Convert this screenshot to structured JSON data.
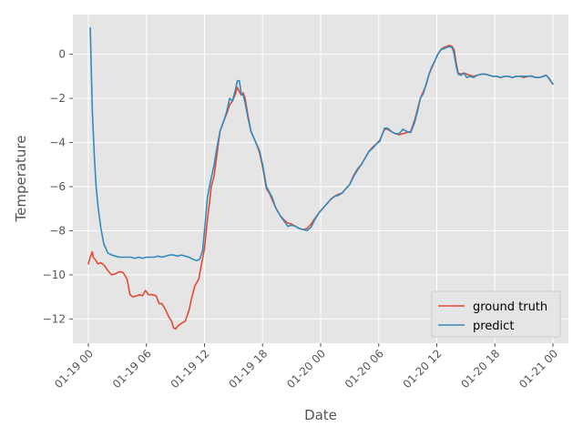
{
  "chart_data": {
    "type": "line",
    "style": "ggplot",
    "xlabel": "Date",
    "ylabel": "Temperature",
    "x_unit": "hours from 01-19 00",
    "xlim": [
      -1.6,
      49.6
    ],
    "ylim": [
      -13.1,
      1.8
    ],
    "x_ticks": [
      {
        "value": 0,
        "label": "01-19 00"
      },
      {
        "value": 6,
        "label": "01-19 06"
      },
      {
        "value": 12,
        "label": "01-19 12"
      },
      {
        "value": 18,
        "label": "01-19 18"
      },
      {
        "value": 24,
        "label": "01-20 00"
      },
      {
        "value": 30,
        "label": "01-20 06"
      },
      {
        "value": 36,
        "label": "01-20 12"
      },
      {
        "value": 42,
        "label": "01-20 18"
      },
      {
        "value": 48,
        "label": "01-21 00"
      }
    ],
    "y_ticks": [
      0,
      -2,
      -4,
      -6,
      -8,
      -10,
      -12
    ],
    "grid": true,
    "legend_position": "lower-right",
    "series": [
      {
        "name": "ground truth",
        "color": "#E24A33",
        "points": [
          [
            0.0,
            -9.5
          ],
          [
            0.2,
            -9.2
          ],
          [
            0.4,
            -8.95
          ],
          [
            0.5,
            -9.2
          ],
          [
            0.7,
            -9.3
          ],
          [
            1.0,
            -9.5
          ],
          [
            1.3,
            -9.45
          ],
          [
            1.6,
            -9.55
          ],
          [
            2.0,
            -9.8
          ],
          [
            2.4,
            -10.0
          ],
          [
            2.8,
            -9.95
          ],
          [
            3.2,
            -9.85
          ],
          [
            3.6,
            -9.9
          ],
          [
            4.0,
            -10.2
          ],
          [
            4.3,
            -10.9
          ],
          [
            4.6,
            -11.0
          ],
          [
            5.0,
            -10.95
          ],
          [
            5.3,
            -10.9
          ],
          [
            5.6,
            -10.95
          ],
          [
            5.9,
            -10.7
          ],
          [
            6.2,
            -10.9
          ],
          [
            6.6,
            -10.9
          ],
          [
            7.0,
            -10.95
          ],
          [
            7.3,
            -11.3
          ],
          [
            7.6,
            -11.3
          ],
          [
            8.0,
            -11.6
          ],
          [
            8.3,
            -11.9
          ],
          [
            8.6,
            -12.1
          ],
          [
            8.8,
            -12.4
          ],
          [
            9.0,
            -12.45
          ],
          [
            9.3,
            -12.3
          ],
          [
            9.6,
            -12.2
          ],
          [
            10.0,
            -12.1
          ],
          [
            10.4,
            -11.6
          ],
          [
            10.7,
            -11.0
          ],
          [
            11.0,
            -10.5
          ],
          [
            11.4,
            -10.2
          ],
          [
            11.7,
            -9.5
          ],
          [
            12.0,
            -8.8
          ],
          [
            12.3,
            -7.5
          ],
          [
            12.5,
            -6.8
          ],
          [
            12.7,
            -6.0
          ],
          [
            13.0,
            -5.5
          ],
          [
            13.3,
            -4.5
          ],
          [
            13.6,
            -3.5
          ],
          [
            14.0,
            -3.0
          ],
          [
            14.3,
            -2.7
          ],
          [
            14.6,
            -2.3
          ],
          [
            14.9,
            -2.1
          ],
          [
            15.2,
            -1.8
          ],
          [
            15.4,
            -1.5
          ],
          [
            15.6,
            -1.7
          ],
          [
            15.8,
            -1.85
          ],
          [
            16.0,
            -1.75
          ],
          [
            16.2,
            -2.0
          ],
          [
            16.5,
            -2.8
          ],
          [
            16.8,
            -3.5
          ],
          [
            17.1,
            -3.8
          ],
          [
            17.4,
            -4.1
          ],
          [
            17.7,
            -4.5
          ],
          [
            18.0,
            -5.1
          ],
          [
            18.4,
            -6.1
          ],
          [
            18.7,
            -6.3
          ],
          [
            19.0,
            -6.6
          ],
          [
            19.4,
            -7.0
          ],
          [
            19.8,
            -7.3
          ],
          [
            20.2,
            -7.5
          ],
          [
            20.6,
            -7.65
          ],
          [
            21.0,
            -7.7
          ],
          [
            21.4,
            -7.8
          ],
          [
            21.8,
            -7.9
          ],
          [
            22.2,
            -7.95
          ],
          [
            22.6,
            -7.9
          ],
          [
            23.0,
            -7.7
          ],
          [
            23.4,
            -7.45
          ],
          [
            23.8,
            -7.2
          ],
          [
            24.2,
            -7.0
          ],
          [
            24.6,
            -6.8
          ],
          [
            25.0,
            -6.6
          ],
          [
            25.4,
            -6.45
          ],
          [
            25.8,
            -6.35
          ],
          [
            26.2,
            -6.3
          ],
          [
            26.6,
            -6.1
          ],
          [
            27.0,
            -5.9
          ],
          [
            27.4,
            -5.5
          ],
          [
            27.8,
            -5.2
          ],
          [
            28.2,
            -5.0
          ],
          [
            28.6,
            -4.7
          ],
          [
            29.0,
            -4.4
          ],
          [
            29.4,
            -4.2
          ],
          [
            29.8,
            -4.05
          ],
          [
            30.1,
            -3.9
          ],
          [
            30.4,
            -3.6
          ],
          [
            30.6,
            -3.4
          ],
          [
            30.9,
            -3.4
          ],
          [
            31.3,
            -3.5
          ],
          [
            31.7,
            -3.6
          ],
          [
            32.1,
            -3.65
          ],
          [
            32.5,
            -3.6
          ],
          [
            32.9,
            -3.55
          ],
          [
            33.3,
            -3.5
          ],
          [
            33.7,
            -3.0
          ],
          [
            34.0,
            -2.5
          ],
          [
            34.3,
            -2.0
          ],
          [
            34.6,
            -1.7
          ],
          [
            34.9,
            -1.4
          ],
          [
            35.2,
            -0.9
          ],
          [
            35.5,
            -0.6
          ],
          [
            35.8,
            -0.3
          ],
          [
            36.1,
            0.0
          ],
          [
            36.4,
            0.2
          ],
          [
            36.7,
            0.3
          ],
          [
            37.0,
            0.35
          ],
          [
            37.3,
            0.4
          ],
          [
            37.6,
            0.35
          ],
          [
            37.8,
            0.2
          ],
          [
            38.0,
            -0.4
          ],
          [
            38.2,
            -0.85
          ],
          [
            38.5,
            -0.9
          ],
          [
            38.8,
            -0.85
          ],
          [
            39.1,
            -0.9
          ],
          [
            39.4,
            -0.95
          ],
          [
            39.8,
            -1.0
          ],
          [
            40.2,
            -0.95
          ],
          [
            40.6,
            -0.9
          ],
          [
            41.0,
            -0.9
          ],
          [
            41.4,
            -0.95
          ],
          [
            41.8,
            -1.0
          ],
          [
            42.2,
            -1.0
          ],
          [
            42.6,
            -1.05
          ],
          [
            43.0,
            -1.0
          ],
          [
            43.4,
            -1.0
          ],
          [
            43.8,
            -1.05
          ],
          [
            44.2,
            -1.0
          ],
          [
            44.6,
            -1.0
          ],
          [
            45.0,
            -1.05
          ],
          [
            45.4,
            -1.0
          ],
          [
            45.8,
            -0.98
          ],
          [
            46.2,
            -1.05
          ],
          [
            46.6,
            -1.05
          ],
          [
            47.0,
            -1.0
          ],
          [
            47.3,
            -0.95
          ],
          [
            47.6,
            -1.1
          ],
          [
            47.9,
            -1.3
          ],
          [
            48.0,
            -1.35
          ]
        ]
      },
      {
        "name": "predict",
        "color": "#348ABD",
        "points": [
          [
            0.2,
            1.2
          ],
          [
            0.4,
            -2.5
          ],
          [
            0.6,
            -4.5
          ],
          [
            0.8,
            -6.0
          ],
          [
            1.0,
            -6.9
          ],
          [
            1.3,
            -7.9
          ],
          [
            1.6,
            -8.6
          ],
          [
            2.0,
            -9.0
          ],
          [
            2.4,
            -9.1
          ],
          [
            2.8,
            -9.15
          ],
          [
            3.2,
            -9.2
          ],
          [
            3.6,
            -9.2
          ],
          [
            4.0,
            -9.2
          ],
          [
            4.4,
            -9.2
          ],
          [
            4.8,
            -9.25
          ],
          [
            5.2,
            -9.2
          ],
          [
            5.6,
            -9.25
          ],
          [
            6.0,
            -9.2
          ],
          [
            6.4,
            -9.2
          ],
          [
            6.8,
            -9.2
          ],
          [
            7.2,
            -9.15
          ],
          [
            7.6,
            -9.2
          ],
          [
            8.0,
            -9.15
          ],
          [
            8.4,
            -9.1
          ],
          [
            8.8,
            -9.1
          ],
          [
            9.2,
            -9.15
          ],
          [
            9.6,
            -9.1
          ],
          [
            10.0,
            -9.15
          ],
          [
            10.4,
            -9.2
          ],
          [
            10.8,
            -9.3
          ],
          [
            11.2,
            -9.35
          ],
          [
            11.5,
            -9.3
          ],
          [
            11.8,
            -8.9
          ],
          [
            12.0,
            -8.0
          ],
          [
            12.3,
            -6.5
          ],
          [
            12.6,
            -5.8
          ],
          [
            13.0,
            -5.0
          ],
          [
            13.3,
            -4.2
          ],
          [
            13.6,
            -3.5
          ],
          [
            14.0,
            -3.0
          ],
          [
            14.3,
            -2.6
          ],
          [
            14.6,
            -2.0
          ],
          [
            14.9,
            -2.1
          ],
          [
            15.2,
            -1.6
          ],
          [
            15.4,
            -1.2
          ],
          [
            15.6,
            -1.2
          ],
          [
            15.8,
            -1.8
          ],
          [
            16.0,
            -1.85
          ],
          [
            16.2,
            -2.2
          ],
          [
            16.5,
            -2.9
          ],
          [
            16.8,
            -3.5
          ],
          [
            17.1,
            -3.8
          ],
          [
            17.4,
            -4.1
          ],
          [
            17.7,
            -4.4
          ],
          [
            18.0,
            -5.0
          ],
          [
            18.4,
            -6.0
          ],
          [
            18.7,
            -6.25
          ],
          [
            19.0,
            -6.5
          ],
          [
            19.4,
            -7.0
          ],
          [
            19.8,
            -7.3
          ],
          [
            20.2,
            -7.55
          ],
          [
            20.6,
            -7.8
          ],
          [
            21.0,
            -7.75
          ],
          [
            21.4,
            -7.8
          ],
          [
            21.8,
            -7.9
          ],
          [
            22.2,
            -7.95
          ],
          [
            22.6,
            -8.0
          ],
          [
            23.0,
            -7.85
          ],
          [
            23.4,
            -7.5
          ],
          [
            23.8,
            -7.2
          ],
          [
            24.2,
            -7.0
          ],
          [
            24.6,
            -6.8
          ],
          [
            25.0,
            -6.6
          ],
          [
            25.4,
            -6.45
          ],
          [
            25.8,
            -6.4
          ],
          [
            26.2,
            -6.3
          ],
          [
            26.6,
            -6.1
          ],
          [
            27.0,
            -5.9
          ],
          [
            27.4,
            -5.55
          ],
          [
            27.8,
            -5.25
          ],
          [
            28.2,
            -5.0
          ],
          [
            28.6,
            -4.7
          ],
          [
            29.0,
            -4.4
          ],
          [
            29.4,
            -4.25
          ],
          [
            29.8,
            -4.05
          ],
          [
            30.1,
            -3.95
          ],
          [
            30.4,
            -3.6
          ],
          [
            30.6,
            -3.35
          ],
          [
            30.9,
            -3.35
          ],
          [
            31.3,
            -3.5
          ],
          [
            31.7,
            -3.6
          ],
          [
            32.1,
            -3.6
          ],
          [
            32.5,
            -3.4
          ],
          [
            32.9,
            -3.5
          ],
          [
            33.3,
            -3.55
          ],
          [
            33.7,
            -3.1
          ],
          [
            34.0,
            -2.6
          ],
          [
            34.3,
            -2.0
          ],
          [
            34.6,
            -1.8
          ],
          [
            34.9,
            -1.35
          ],
          [
            35.2,
            -0.9
          ],
          [
            35.5,
            -0.55
          ],
          [
            35.8,
            -0.3
          ],
          [
            36.1,
            0.0
          ],
          [
            36.4,
            0.2
          ],
          [
            36.7,
            0.25
          ],
          [
            37.0,
            0.3
          ],
          [
            37.3,
            0.35
          ],
          [
            37.6,
            0.3
          ],
          [
            37.8,
            0.0
          ],
          [
            38.0,
            -0.55
          ],
          [
            38.2,
            -0.9
          ],
          [
            38.5,
            -0.95
          ],
          [
            38.8,
            -0.85
          ],
          [
            39.1,
            -1.05
          ],
          [
            39.4,
            -1.0
          ],
          [
            39.8,
            -1.05
          ],
          [
            40.2,
            -0.95
          ],
          [
            40.6,
            -0.9
          ],
          [
            41.0,
            -0.9
          ],
          [
            41.4,
            -0.95
          ],
          [
            41.8,
            -1.0
          ],
          [
            42.2,
            -1.0
          ],
          [
            42.6,
            -1.05
          ],
          [
            43.0,
            -1.0
          ],
          [
            43.4,
            -1.0
          ],
          [
            43.8,
            -1.05
          ],
          [
            44.2,
            -1.0
          ],
          [
            44.6,
            -1.0
          ],
          [
            45.0,
            -1.0
          ],
          [
            45.4,
            -1.0
          ],
          [
            45.8,
            -1.0
          ],
          [
            46.2,
            -1.05
          ],
          [
            46.6,
            -1.05
          ],
          [
            47.0,
            -1.0
          ],
          [
            47.3,
            -0.95
          ],
          [
            47.6,
            -1.1
          ],
          [
            47.9,
            -1.3
          ],
          [
            48.0,
            -1.35
          ]
        ]
      }
    ]
  }
}
